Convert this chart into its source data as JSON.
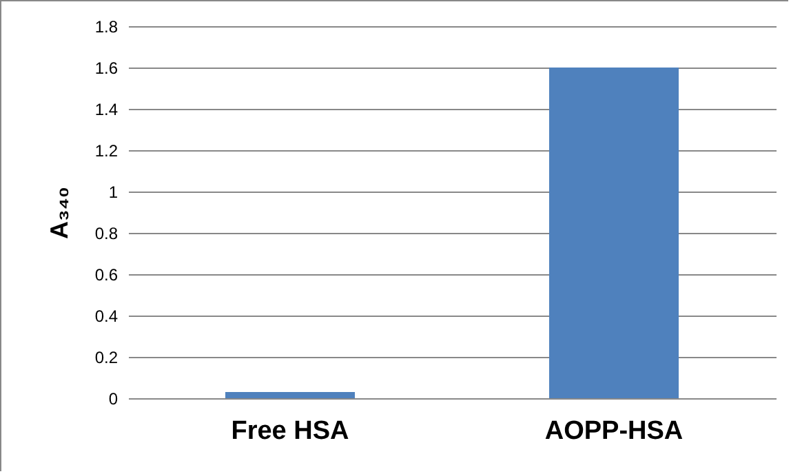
{
  "chart_data": {
    "type": "bar",
    "ylabel": "A₃₄₀",
    "categories": [
      "Free HSA",
      "AOPP-HSA"
    ],
    "values": [
      0.03,
      1.6
    ],
    "color": "#4f81bd",
    "ylim": [
      0,
      1.8
    ],
    "yticks": [
      0,
      0.2,
      0.4,
      0.6,
      0.8,
      1,
      1.2,
      1.4,
      1.6,
      1.8
    ],
    "grid": true
  }
}
